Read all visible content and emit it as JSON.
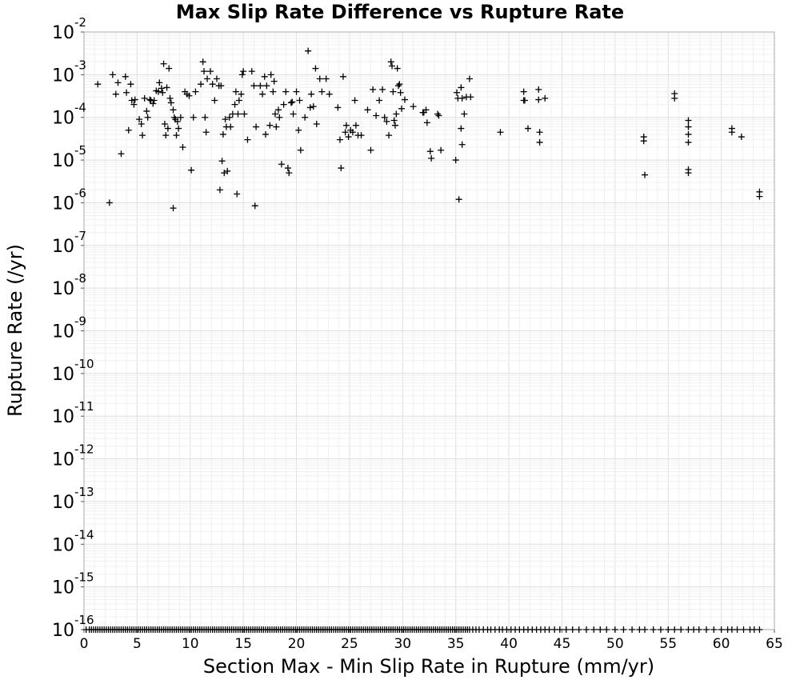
{
  "chart_data": {
    "type": "scatter",
    "title": "Max Slip Rate Difference vs Rupture Rate",
    "xlabel": "Section Max - Min Slip Rate in Rupture (mm/yr)",
    "ylabel": "Rupture Rate (/yr)",
    "xlim": [
      0,
      65
    ],
    "ylim": [
      1e-16,
      0.01
    ],
    "yscale": "log",
    "grid": true,
    "marker": "+",
    "marker_color": "#000000",
    "x_ticks": [
      "0",
      "5",
      "10",
      "15",
      "20",
      "25",
      "30",
      "35",
      "40",
      "45",
      "50",
      "55",
      "60",
      "65"
    ],
    "y_ticks": [
      {
        "base": "10",
        "exp": "-2"
      },
      {
        "base": "10",
        "exp": "-3"
      },
      {
        "base": "10",
        "exp": "-4"
      },
      {
        "base": "10",
        "exp": "-5"
      },
      {
        "base": "10",
        "exp": "-6"
      },
      {
        "base": "10",
        "exp": "-7"
      },
      {
        "base": "10",
        "exp": "-8"
      },
      {
        "base": "10",
        "exp": "-9"
      },
      {
        "base": "10",
        "exp": "-10"
      },
      {
        "base": "10",
        "exp": "-11"
      },
      {
        "base": "10",
        "exp": "-12"
      },
      {
        "base": "10",
        "exp": "-13"
      },
      {
        "base": "10",
        "exp": "-14"
      },
      {
        "base": "10",
        "exp": "-15"
      },
      {
        "base": "10",
        "exp": "-16"
      }
    ],
    "points": [
      [
        1.3,
        0.0006
      ],
      [
        2.4,
        1e-06
      ],
      [
        2.7,
        0.001
      ],
      [
        3.0,
        0.00035
      ],
      [
        3.2,
        0.00065
      ],
      [
        3.5,
        1.4e-05
      ],
      [
        3.9,
        0.0009
      ],
      [
        4.0,
        0.00038
      ],
      [
        4.2,
        5e-05
      ],
      [
        4.4,
        0.0006
      ],
      [
        4.5,
        0.00025
      ],
      [
        4.7,
        0.0002
      ],
      [
        4.8,
        0.00026
      ],
      [
        5.2,
        9e-05
      ],
      [
        5.4,
        7e-05
      ],
      [
        5.5,
        3.8e-05
      ],
      [
        5.7,
        0.00028
      ],
      [
        5.9,
        0.00014
      ],
      [
        6.0,
        0.0001
      ],
      [
        6.2,
        0.00026
      ],
      [
        6.3,
        0.00025
      ],
      [
        6.5,
        0.00021
      ],
      [
        6.6,
        0.00025
      ],
      [
        6.8,
        0.00042
      ],
      [
        7.0,
        0.0004
      ],
      [
        7.1,
        0.00065
      ],
      [
        7.3,
        0.00048
      ],
      [
        7.4,
        0.00038
      ],
      [
        7.5,
        0.0018
      ],
      [
        7.6,
        7e-05
      ],
      [
        7.7,
        3.8e-05
      ],
      [
        7.8,
        0.0005
      ],
      [
        7.9,
        5.5e-05
      ],
      [
        8.0,
        0.0014
      ],
      [
        8.1,
        0.00028
      ],
      [
        8.2,
        0.00022
      ],
      [
        8.4,
        0.00015
      ],
      [
        8.5,
        0.0001
      ],
      [
        8.6,
        9e-05
      ],
      [
        8.7,
        3.8e-05
      ],
      [
        8.8,
        8e-05
      ],
      [
        8.9,
        5.5e-05
      ],
      [
        9.1,
        0.0001
      ],
      [
        9.3,
        2e-05
      ],
      [
        9.5,
        0.0004
      ],
      [
        9.7,
        0.00035
      ],
      [
        9.9,
        0.00032
      ],
      [
        10.1,
        5.8e-06
      ],
      [
        10.3,
        0.0001
      ],
      [
        10.5,
        0.0004
      ],
      [
        8.4,
        7.5e-07
      ],
      [
        11.0,
        0.0006
      ],
      [
        11.2,
        0.002
      ],
      [
        11.3,
        0.0012
      ],
      [
        11.4,
        0.0001
      ],
      [
        11.5,
        4.5e-05
      ],
      [
        11.6,
        0.0008
      ],
      [
        11.9,
        0.0012
      ],
      [
        12.1,
        0.0006
      ],
      [
        12.3,
        0.00025
      ],
      [
        12.5,
        0.0008
      ],
      [
        12.7,
        0.00055
      ],
      [
        12.8,
        2e-06
      ],
      [
        12.9,
        0.00055
      ],
      [
        13.0,
        9.5e-06
      ],
      [
        13.1,
        4e-05
      ],
      [
        13.2,
        5e-06
      ],
      [
        13.3,
        9e-05
      ],
      [
        13.4,
        6e-05
      ],
      [
        13.5,
        5.5e-06
      ],
      [
        13.7,
        0.0001
      ],
      [
        13.8,
        6e-05
      ],
      [
        14.0,
        0.00012
      ],
      [
        14.2,
        0.0002
      ],
      [
        14.3,
        0.0004
      ],
      [
        14.4,
        1.6e-06
      ],
      [
        14.5,
        0.00012
      ],
      [
        14.6,
        0.00025
      ],
      [
        14.8,
        0.00035
      ],
      [
        14.9,
        0.001
      ],
      [
        15.0,
        0.0012
      ],
      [
        15.1,
        0.00012
      ],
      [
        15.4,
        3e-05
      ],
      [
        15.8,
        0.0012
      ],
      [
        16.0,
        0.00055
      ],
      [
        16.1,
        8.5e-07
      ],
      [
        16.2,
        6e-05
      ],
      [
        16.6,
        0.00055
      ],
      [
        16.8,
        0.00035
      ],
      [
        17.0,
        0.0009
      ],
      [
        17.1,
        4e-05
      ],
      [
        17.2,
        0.00055
      ],
      [
        17.5,
        6.5e-05
      ],
      [
        17.6,
        0.001
      ],
      [
        17.8,
        0.0004
      ],
      [
        17.9,
        0.0007
      ],
      [
        18.0,
        0.00012
      ],
      [
        18.1,
        6e-05
      ],
      [
        18.3,
        0.00015
      ],
      [
        18.4,
        0.0001
      ],
      [
        18.6,
        8e-06
      ],
      [
        18.8,
        0.0002
      ],
      [
        19.0,
        0.0004
      ],
      [
        19.2,
        6.5e-06
      ],
      [
        19.3,
        5e-06
      ],
      [
        19.5,
        0.00022
      ],
      [
        19.6,
        0.00023
      ],
      [
        19.7,
        0.00012
      ],
      [
        20.0,
        0.0004
      ],
      [
        20.2,
        5e-05
      ],
      [
        20.3,
        0.00025
      ],
      [
        20.4,
        1.7e-05
      ],
      [
        20.8,
        0.0001
      ],
      [
        21.1,
        0.0036
      ],
      [
        21.3,
        0.00017
      ],
      [
        21.4,
        0.00035
      ],
      [
        21.6,
        0.00018
      ],
      [
        21.8,
        0.0014
      ],
      [
        21.9,
        7e-05
      ],
      [
        22.2,
        0.0008
      ],
      [
        22.4,
        0.0004
      ],
      [
        22.8,
        0.0008
      ],
      [
        23.1,
        0.00035
      ],
      [
        23.9,
        0.00017
      ],
      [
        24.1,
        3e-05
      ],
      [
        24.2,
        6.5e-06
      ],
      [
        24.4,
        0.0009
      ],
      [
        24.6,
        4.5e-05
      ],
      [
        24.7,
        6.5e-05
      ],
      [
        24.9,
        3.5e-05
      ],
      [
        25.1,
        5e-05
      ],
      [
        25.3,
        4.5e-05
      ],
      [
        25.5,
        0.00025
      ],
      [
        25.6,
        6.5e-05
      ],
      [
        25.8,
        3.8e-05
      ],
      [
        26.1,
        3.8e-05
      ],
      [
        26.7,
        0.00015
      ],
      [
        27.0,
        1.7e-05
      ],
      [
        27.2,
        0.00045
      ],
      [
        27.5,
        0.00011
      ],
      [
        27.8,
        0.00025
      ],
      [
        28.1,
        0.00045
      ],
      [
        28.3,
        0.0001
      ],
      [
        28.5,
        8e-05
      ],
      [
        28.7,
        3.8e-05
      ],
      [
        28.9,
        0.002
      ],
      [
        29.0,
        0.0016
      ],
      [
        29.1,
        0.0004
      ],
      [
        29.2,
        8.5e-05
      ],
      [
        29.3,
        6.5e-05
      ],
      [
        29.4,
        0.00012
      ],
      [
        29.5,
        0.0014
      ],
      [
        29.6,
        0.00055
      ],
      [
        29.7,
        0.0006
      ],
      [
        29.8,
        0.00038
      ],
      [
        29.9,
        0.00016
      ],
      [
        30.2,
        0.00026
      ],
      [
        31.0,
        0.00018
      ],
      [
        31.9,
        0.00013
      ],
      [
        32.0,
        0.00013
      ],
      [
        32.2,
        0.00015
      ],
      [
        32.3,
        7.5e-05
      ],
      [
        32.6,
        1.6e-05
      ],
      [
        32.7,
        1.1e-05
      ],
      [
        33.3,
        0.00012
      ],
      [
        33.4,
        0.00011
      ],
      [
        33.6,
        1.7e-05
      ],
      [
        35.0,
        1e-05
      ],
      [
        35.1,
        0.00038
      ],
      [
        35.2,
        0.00028
      ],
      [
        35.3,
        1.2e-06
      ],
      [
        35.5,
        0.0005
      ],
      [
        35.6,
        0.00028
      ],
      [
        35.5,
        5.5e-05
      ],
      [
        35.6,
        2.3e-05
      ],
      [
        35.8,
        0.00012
      ],
      [
        36.0,
        0.0003
      ],
      [
        36.3,
        0.0008
      ],
      [
        36.4,
        0.0003
      ],
      [
        39.2,
        4.5e-05
      ],
      [
        41.4,
        0.0004
      ],
      [
        41.4,
        0.00025
      ],
      [
        41.5,
        0.00025
      ],
      [
        41.8,
        5.5e-05
      ],
      [
        42.8,
        0.00045
      ],
      [
        42.8,
        0.00026
      ],
      [
        42.9,
        4.5e-05
      ],
      [
        42.9,
        2.6e-05
      ],
      [
        43.4,
        0.00028
      ],
      [
        52.7,
        3.5e-05
      ],
      [
        52.7,
        2.8e-05
      ],
      [
        52.8,
        4.5e-06
      ],
      [
        55.6,
        0.00036
      ],
      [
        55.6,
        0.00028
      ],
      [
        56.9,
        8.5e-05
      ],
      [
        56.9,
        6e-05
      ],
      [
        56.9,
        4e-05
      ],
      [
        56.9,
        2.6e-05
      ],
      [
        56.9,
        6e-06
      ],
      [
        56.9,
        5e-06
      ],
      [
        61.0,
        5.5e-05
      ],
      [
        61.0,
        4.5e-05
      ],
      [
        61.9,
        3.5e-05
      ],
      [
        63.6,
        1.8e-06
      ],
      [
        63.6,
        1.4e-06
      ]
    ],
    "floor_points_x": [
      0.2,
      0.5,
      0.7,
      0.9,
      1.1,
      1.3,
      1.5,
      1.7,
      1.9,
      2.1,
      2.3,
      2.5,
      2.7,
      2.9,
      3.1,
      3.3,
      3.5,
      3.7,
      3.9,
      4.1,
      4.3,
      4.5,
      4.7,
      4.9,
      5.1,
      5.3,
      5.5,
      5.7,
      5.9,
      6.1,
      6.3,
      6.5,
      6.7,
      6.9,
      7.1,
      7.3,
      7.5,
      7.7,
      7.9,
      8.1,
      8.3,
      8.5,
      8.7,
      8.9,
      9.1,
      9.3,
      9.5,
      9.7,
      9.9,
      10.1,
      10.3,
      10.5,
      10.7,
      10.9,
      11.1,
      11.3,
      11.5,
      11.7,
      11.9,
      12.1,
      12.3,
      12.5,
      12.7,
      12.9,
      13.1,
      13.3,
      13.5,
      13.7,
      13.9,
      14.1,
      14.3,
      14.5,
      14.7,
      14.9,
      15.1,
      15.3,
      15.5,
      15.7,
      15.9,
      16.1,
      16.3,
      16.5,
      16.7,
      16.9,
      17.1,
      17.3,
      17.5,
      17.7,
      17.9,
      18.1,
      18.3,
      18.5,
      18.7,
      18.9,
      19.1,
      19.3,
      19.5,
      19.7,
      19.9,
      20.1,
      20.3,
      20.5,
      20.7,
      20.9,
      21.1,
      21.3,
      21.5,
      21.7,
      21.9,
      22.1,
      22.3,
      22.5,
      22.7,
      22.9,
      23.1,
      23.3,
      23.5,
      23.7,
      23.9,
      24.1,
      24.3,
      24.5,
      24.7,
      24.9,
      25.1,
      25.3,
      25.5,
      25.7,
      25.9,
      26.1,
      26.3,
      26.5,
      26.7,
      26.9,
      27.1,
      27.3,
      27.5,
      27.7,
      27.9,
      28.1,
      28.3,
      28.5,
      28.7,
      28.9,
      29.1,
      29.3,
      29.5,
      29.7,
      29.9,
      30.1,
      30.3,
      30.5,
      30.7,
      30.9,
      31.1,
      31.3,
      31.5,
      31.7,
      31.9,
      32.1,
      32.3,
      32.5,
      32.7,
      32.9,
      33.1,
      33.3,
      33.5,
      33.7,
      33.9,
      34.1,
      34.3,
      34.5,
      34.7,
      34.9,
      35.1,
      35.3,
      35.5,
      35.7,
      35.9,
      36.1,
      36.3,
      36.6,
      36.9,
      37.2,
      37.6,
      38.0,
      38.3,
      38.7,
      39.1,
      39.4,
      39.8,
      40.2,
      40.6,
      41.0,
      41.4,
      41.8,
      42.2,
      42.6,
      43.0,
      43.4,
      43.8,
      44.3,
      44.8,
      45.4,
      46.0,
      46.6,
      47.3,
      48.0,
      48.6,
      49.2,
      50.0,
      50.8,
      51.6,
      52.3,
      52.8,
      53.6,
      54.3,
      55.0,
      55.6,
      56.2,
      56.9,
      57.4,
      57.9,
      58.6,
      59.3,
      60.0,
      60.6,
      61.0,
      61.5,
      62.1,
      62.7,
      63.1,
      63.6
    ]
  }
}
